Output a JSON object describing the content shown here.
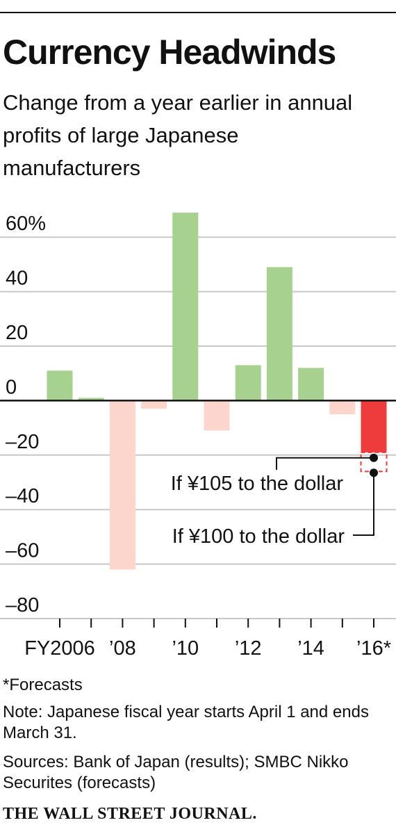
{
  "chart_data": {
    "type": "bar",
    "title": "Currency Headwinds",
    "subtitle": "Change from a year earlier in annual profits of large Japanese manufacturers",
    "categories": [
      "FY2006",
      null,
      "’08",
      null,
      "’10",
      null,
      "’12",
      null,
      "’14",
      null,
      "’16*"
    ],
    "values": [
      11,
      1,
      -62,
      -3,
      69,
      -11,
      13,
      49,
      12,
      -5,
      -19
    ],
    "colors": [
      "#a6d18f",
      "#a6d18f",
      "#fcd5cc",
      "#fcd5cc",
      "#a6d18f",
      "#fcd5cc",
      "#a6d18f",
      "#a6d18f",
      "#a6d18f",
      "#fcd5cc",
      "#ee3b3b"
    ],
    "ylim": [
      -80,
      70
    ],
    "yticks": [
      {
        "value": 60,
        "label": "60%"
      },
      40,
      20,
      0,
      {
        "value": -20,
        "label": "–20"
      },
      {
        "value": -40,
        "label": "–40"
      },
      {
        "value": -60,
        "label": "–60"
      },
      {
        "value": -80,
        "label": "–80"
      }
    ],
    "grid": true,
    "annotations": [
      {
        "text": "If ¥105 to the dollar",
        "value": -19
      },
      {
        "text": "If ¥100 to the dollar",
        "value": -26
      }
    ],
    "footnote": "*Forecasts",
    "note": "Note: Japanese fiscal year starts April 1 and ends March 31.",
    "sources": "Sources: Bank of Japan (results); SMBC Nikko Securites (forecasts)",
    "credit": "THE WALL STREET JOURNAL."
  }
}
